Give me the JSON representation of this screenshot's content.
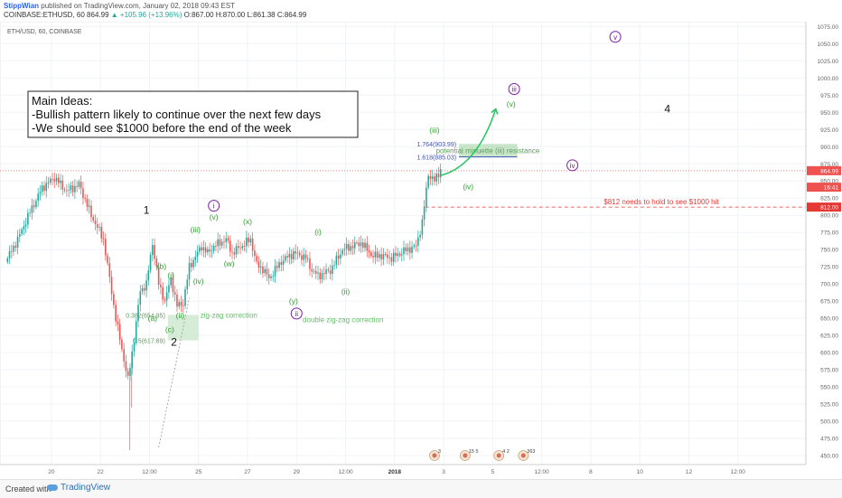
{
  "header": {
    "author": "StippWian",
    "published": "published on TradingView.com, January 02, 2018 09:43 EST",
    "symbol_line": "COINBASE:ETHUSD, 60",
    "last_price": "864.99",
    "change": "▲ +105.96 (+13.96%)",
    "ohlc": "O:867.00 H:870.00 L:861.38 C:864.99"
  },
  "footer": {
    "created_with": "Created with",
    "brand": "TradingView"
  },
  "colors": {
    "up": "#26a69a",
    "down": "#ef5350",
    "wave_green": "#2ea02e",
    "wave_purple": "#7b1fa2",
    "red_line": "#e53935",
    "fib_blue": "#3f51b5"
  },
  "chart_data": {
    "type": "candlestick",
    "title": "ETH/USD, 60, COINBASE",
    "ylim": [
      437,
      1082
    ],
    "y_ticks": [
      450,
      475,
      500,
      525,
      550,
      575,
      600,
      625,
      650,
      675,
      700,
      725,
      750,
      775,
      800,
      825,
      850,
      875,
      900,
      925,
      950,
      975,
      1000,
      1025,
      1050,
      1075
    ],
    "x_ticks": [
      "20",
      "22",
      "12:00",
      "25",
      "27",
      "29",
      "12:00",
      "2018",
      "3",
      "5",
      "12:00",
      "8",
      "10",
      "12",
      "12:00"
    ],
    "price_labels": [
      {
        "value": 864.99,
        "text": "864.99",
        "color": "#ef5350"
      },
      {
        "value": 841.0,
        "text": "16:41",
        "color": "#ef5350"
      },
      {
        "value": 812.0,
        "text": "812.00",
        "color": "#e53935"
      }
    ],
    "price_path": [
      [
        0,
        732
      ],
      [
        2,
        765
      ],
      [
        4,
        805
      ],
      [
        6,
        840
      ],
      [
        8,
        855
      ],
      [
        10,
        835
      ],
      [
        12,
        845
      ],
      [
        14,
        800
      ],
      [
        16,
        765
      ],
      [
        18,
        650
      ],
      [
        20,
        560
      ],
      [
        21,
        620
      ],
      [
        22,
        690
      ],
      [
        23,
        700
      ],
      [
        24,
        760
      ],
      [
        25,
        700
      ],
      [
        26,
        675
      ],
      [
        27,
        708
      ],
      [
        28,
        668
      ],
      [
        29,
        672
      ],
      [
        30,
        725
      ],
      [
        32,
        755
      ],
      [
        33,
        745
      ],
      [
        34,
        755
      ],
      [
        36,
        765
      ],
      [
        37,
        745
      ],
      [
        38,
        752
      ],
      [
        40,
        765
      ],
      [
        41,
        728
      ],
      [
        42,
        722
      ],
      [
        43,
        708
      ],
      [
        45,
        733
      ],
      [
        47,
        745
      ],
      [
        48,
        742
      ],
      [
        49,
        738
      ],
      [
        50,
        720
      ],
      [
        51,
        712
      ],
      [
        53,
        720
      ],
      [
        55,
        750
      ],
      [
        58,
        760
      ],
      [
        60,
        740
      ],
      [
        61,
        742
      ],
      [
        63,
        738
      ],
      [
        65,
        748
      ],
      [
        67,
        755
      ],
      [
        68,
        790
      ],
      [
        69,
        860
      ],
      [
        70,
        850
      ],
      [
        71,
        867
      ]
    ],
    "main_ideas": {
      "heading": "Main Ideas:",
      "line1": "-Bullish pattern likely to continue over the next few days",
      "line2": "-We should see $1000 before the end of the week"
    },
    "hlines": [
      {
        "value": 864.99,
        "style": "dotted",
        "color": "#ef5350"
      },
      {
        "value": 812.0,
        "style": "dashed",
        "color": "#e53935",
        "label": "$812 needs to hold to see $1000 hit"
      }
    ],
    "resistance_zone": {
      "low": 885.03,
      "high": 903.99,
      "label": "potential minuette (iii) resistance",
      "fib_high": "1.764(903.99)",
      "fib_low": "1.618(885.03)"
    },
    "support_zone": {
      "low": 617.89,
      "high": 654.95,
      "label": "zig-zag correction",
      "fib_high": "0.382(654.95)",
      "fib_low": "0.5(617.89)"
    },
    "double_zz_label": "double zig-zag correction",
    "projection": [
      [
        71,
        858
      ],
      [
        74,
        872
      ],
      [
        77,
        905
      ],
      [
        80,
        955
      ]
    ],
    "wave_labels": [
      {
        "text": "1",
        "x": 23,
        "v": 802,
        "style": "black"
      },
      {
        "text": "2",
        "x": 27.5,
        "v": 610,
        "style": "black"
      },
      {
        "text": "4",
        "x": 108,
        "v": 950,
        "style": "black"
      },
      {
        "text": "(a)",
        "x": 24,
        "v": 646,
        "style": "green"
      },
      {
        "text": "(b)",
        "x": 25.5,
        "v": 722,
        "style": "green"
      },
      {
        "text": "(c)",
        "x": 26.8,
        "v": 630,
        "style": "green"
      },
      {
        "text": "(i)",
        "x": 27,
        "v": 709,
        "style": "green"
      },
      {
        "text": "(ii)",
        "x": 28.5,
        "v": 650,
        "style": "green"
      },
      {
        "text": "(iii)",
        "x": 31,
        "v": 775,
        "style": "green"
      },
      {
        "text": "(iv)",
        "x": 31.5,
        "v": 700,
        "style": "green"
      },
      {
        "text": "(v)",
        "x": 34,
        "v": 794,
        "style": "green"
      },
      {
        "text": "(w)",
        "x": 36.5,
        "v": 726,
        "style": "green"
      },
      {
        "text": "(x)",
        "x": 39.5,
        "v": 787,
        "style": "green"
      },
      {
        "text": "(y)",
        "x": 47,
        "v": 671,
        "style": "green"
      },
      {
        "text": "(i)",
        "x": 51,
        "v": 772,
        "style": "green"
      },
      {
        "text": "(ii)",
        "x": 55.5,
        "v": 685,
        "style": "green"
      },
      {
        "text": "(iii)",
        "x": 70,
        "v": 920,
        "style": "green"
      },
      {
        "text": "(iv)",
        "x": 75.5,
        "v": 838,
        "style": "green"
      },
      {
        "text": "(v)",
        "x": 82.5,
        "v": 958,
        "style": "green"
      },
      {
        "text": "i",
        "x": 34,
        "v": 810,
        "style": "circle"
      },
      {
        "text": "ii",
        "x": 47.5,
        "v": 653,
        "style": "circle"
      },
      {
        "text": "iii",
        "x": 83,
        "v": 980,
        "style": "circle"
      },
      {
        "text": "iv",
        "x": 92.5,
        "v": 869,
        "style": "circle"
      },
      {
        "text": "v",
        "x": 99.5,
        "v": 1056,
        "style": "circle"
      }
    ],
    "events": [
      {
        "x": 70,
        "text": "3"
      },
      {
        "x": 75,
        "text": "15 5"
      },
      {
        "x": 80.5,
        "text": "4 2"
      },
      {
        "x": 84.5,
        "text": "363"
      }
    ]
  }
}
